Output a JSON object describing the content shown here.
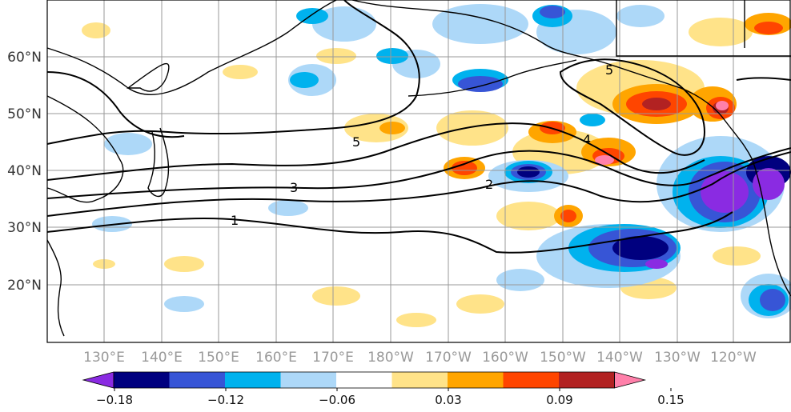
{
  "map": {
    "latitude_labels": [
      "60°N",
      "50°N",
      "40°N",
      "30°N",
      "20°N"
    ],
    "longitude_labels": [
      "130°E",
      "140°E",
      "150°E",
      "160°E",
      "170°E",
      "180°W",
      "170°W",
      "160°W",
      "150°W",
      "140°W",
      "130°W",
      "120°W"
    ],
    "contour_labels": [
      "5",
      "4",
      "3",
      "2",
      "1",
      "5"
    ],
    "colors": {
      "land_outline": "#000000",
      "grid": "#999999",
      "contour": "#000000"
    }
  },
  "colorbar": {
    "tick_labels": [
      "−0.18",
      "−0.12",
      "−0.06",
      "0.03",
      "0.09",
      "0.15"
    ],
    "colors": [
      "#8a2be2",
      "#00007f",
      "#3755d6",
      "#00b2ee",
      "#add8f8",
      "#ffffff",
      "#ffe389",
      "#ffa500",
      "#ff4500",
      "#b22222",
      "#ff80aa"
    ]
  }
}
